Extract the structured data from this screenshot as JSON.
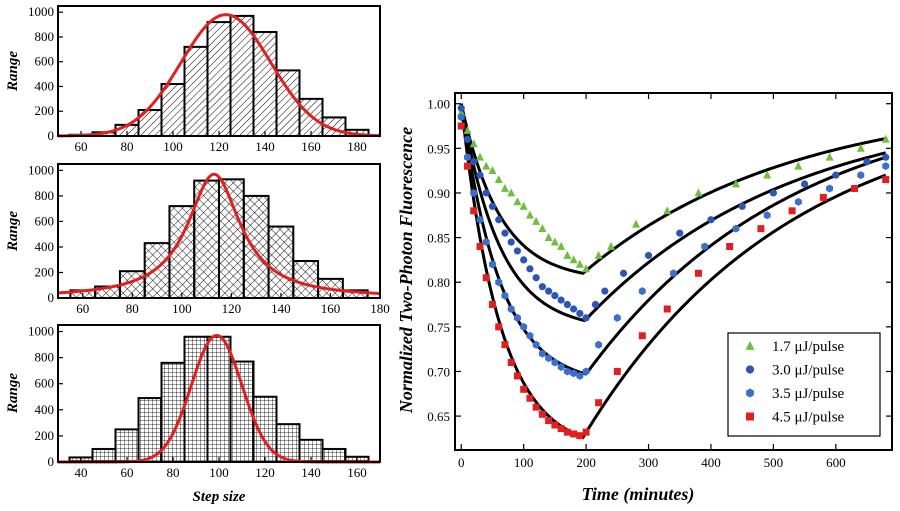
{
  "chart_data": [
    {
      "type": "bar",
      "panel": "top",
      "title": "",
      "xlabel": "",
      "ylabel": "Range",
      "xlim": [
        50,
        190
      ],
      "ylim": [
        0,
        1050
      ],
      "xticks": [
        60,
        80,
        100,
        120,
        140,
        160,
        180
      ],
      "yticks": [
        0,
        200,
        400,
        600,
        800,
        1000
      ],
      "bin_width": 10,
      "categories": [
        60,
        70,
        80,
        90,
        100,
        110,
        120,
        130,
        140,
        150,
        160,
        170,
        180
      ],
      "values": [
        10,
        30,
        90,
        210,
        420,
        720,
        920,
        970,
        840,
        530,
        300,
        150,
        50
      ],
      "fill_pattern": "diagonal-hatch",
      "fit": {
        "type": "gaussian",
        "color": "#e02020",
        "amplitude": 980,
        "mean": 123,
        "sigma": 19.5
      }
    },
    {
      "type": "bar",
      "panel": "middle",
      "title": "",
      "xlabel": "",
      "ylabel": "Range",
      "xlim": [
        50,
        180
      ],
      "ylim": [
        0,
        1050
      ],
      "xticks": [
        60,
        80,
        100,
        120,
        140,
        160,
        180
      ],
      "yticks": [
        0,
        200,
        400,
        600,
        800,
        1000
      ],
      "bin_width": 10,
      "categories": [
        60,
        70,
        80,
        90,
        100,
        110,
        120,
        130,
        140,
        150,
        160,
        170
      ],
      "values": [
        60,
        90,
        210,
        430,
        720,
        920,
        930,
        800,
        560,
        290,
        150,
        60
      ],
      "fill_pattern": "cross-hatch",
      "fit": {
        "type": "lorentzian",
        "color": "#e02020",
        "amplitude": 970,
        "center": 113,
        "hwhm": 13
      }
    },
    {
      "type": "bar",
      "panel": "bottom",
      "title": "",
      "xlabel": "Step size",
      "ylabel": "Range",
      "xlim": [
        30,
        170
      ],
      "ylim": [
        0,
        1050
      ],
      "xticks": [
        40,
        60,
        80,
        100,
        120,
        140,
        160
      ],
      "yticks": [
        0,
        200,
        400,
        600,
        800,
        1000
      ],
      "bin_width": 10,
      "categories": [
        40,
        50,
        60,
        70,
        80,
        90,
        100,
        110,
        120,
        130,
        140,
        150,
        160
      ],
      "values": [
        35,
        100,
        250,
        490,
        760,
        960,
        960,
        770,
        500,
        290,
        170,
        100,
        40
      ],
      "fill_pattern": "grid",
      "fit": {
        "type": "gaussian",
        "color": "#e02020",
        "amplitude": 970,
        "mean": 99,
        "sigma": 11
      }
    },
    {
      "type": "scatter",
      "panel": "right",
      "title": "",
      "xlabel": "Time (minutes)",
      "ylabel": "Normalized Two-Photon Fluorescence",
      "xlim": [
        -10,
        690
      ],
      "ylim": [
        0.612,
        1.012
      ],
      "xticks": [
        0,
        100,
        200,
        300,
        400,
        500,
        600
      ],
      "yticks": [
        0.65,
        0.7,
        0.75,
        0.8,
        0.85,
        0.9,
        0.95,
        1.0
      ],
      "ytick_labels": [
        "0.65",
        "0.70",
        "0.75",
        "0.80",
        "0.85",
        "0.90",
        "0.95",
        "1.00"
      ],
      "legend_position": "bottom-right",
      "series": [
        {
          "name": "1.7 μJ/pulse",
          "marker": "triangle",
          "color": "#6fbf3f",
          "min_time": 195,
          "min_value": 0.81,
          "end_value": 0.961,
          "x": [
            0,
            10,
            20,
            30,
            40,
            50,
            60,
            70,
            80,
            90,
            100,
            110,
            120,
            130,
            140,
            150,
            160,
            170,
            180,
            190,
            200,
            220,
            240,
            280,
            330,
            380,
            440,
            490,
            540,
            590,
            640,
            680
          ],
          "y": [
            0.99,
            0.97,
            0.955,
            0.94,
            0.93,
            0.925,
            0.915,
            0.905,
            0.9,
            0.89,
            0.885,
            0.875,
            0.868,
            0.86,
            0.85,
            0.845,
            0.84,
            0.83,
            0.825,
            0.82,
            0.815,
            0.83,
            0.84,
            0.865,
            0.88,
            0.9,
            0.91,
            0.92,
            0.93,
            0.94,
            0.95,
            0.96
          ]
        },
        {
          "name": "3.0 μJ/pulse",
          "marker": "circle",
          "color": "#2c55b8",
          "min_time": 198,
          "min_value": 0.757,
          "end_value": 0.945,
          "x": [
            0,
            10,
            20,
            30,
            40,
            50,
            60,
            70,
            80,
            90,
            100,
            110,
            120,
            130,
            140,
            150,
            160,
            170,
            180,
            190,
            200,
            215,
            230,
            260,
            300,
            350,
            400,
            450,
            500,
            550,
            600,
            650,
            680
          ],
          "y": [
            0.995,
            0.96,
            0.935,
            0.92,
            0.9,
            0.885,
            0.87,
            0.855,
            0.845,
            0.835,
            0.825,
            0.815,
            0.805,
            0.795,
            0.79,
            0.785,
            0.78,
            0.775,
            0.77,
            0.765,
            0.76,
            0.775,
            0.79,
            0.81,
            0.83,
            0.855,
            0.87,
            0.885,
            0.9,
            0.91,
            0.92,
            0.935,
            0.94
          ]
        },
        {
          "name": "3.5 μJ/pulse",
          "marker": "hexagon",
          "color": "#3a6fd0",
          "min_time": 200,
          "min_value": 0.697,
          "end_value": 0.94,
          "x": [
            0,
            10,
            20,
            30,
            40,
            50,
            60,
            70,
            80,
            90,
            100,
            110,
            120,
            130,
            140,
            150,
            160,
            170,
            180,
            190,
            200,
            220,
            250,
            290,
            340,
            390,
            440,
            490,
            540,
            590,
            640,
            680
          ],
          "y": [
            0.985,
            0.94,
            0.9,
            0.87,
            0.845,
            0.82,
            0.8,
            0.785,
            0.77,
            0.76,
            0.75,
            0.74,
            0.73,
            0.72,
            0.715,
            0.71,
            0.705,
            0.7,
            0.698,
            0.695,
            0.7,
            0.73,
            0.76,
            0.79,
            0.81,
            0.84,
            0.86,
            0.875,
            0.89,
            0.905,
            0.92,
            0.93
          ]
        },
        {
          "name": "4.5 μJ/pulse",
          "marker": "square",
          "color": "#e02020",
          "min_time": 195,
          "min_value": 0.626,
          "end_value": 0.92,
          "x": [
            0,
            10,
            20,
            30,
            40,
            50,
            60,
            70,
            80,
            90,
            100,
            110,
            120,
            130,
            140,
            150,
            160,
            170,
            180,
            190,
            200,
            220,
            250,
            290,
            330,
            380,
            430,
            480,
            530,
            580,
            630,
            680
          ],
          "y": [
            0.975,
            0.93,
            0.88,
            0.84,
            0.805,
            0.775,
            0.75,
            0.73,
            0.71,
            0.695,
            0.68,
            0.67,
            0.66,
            0.652,
            0.645,
            0.64,
            0.636,
            0.632,
            0.63,
            0.628,
            0.632,
            0.665,
            0.7,
            0.74,
            0.77,
            0.81,
            0.84,
            0.86,
            0.88,
            0.895,
            0.905,
            0.915
          ]
        }
      ]
    }
  ]
}
